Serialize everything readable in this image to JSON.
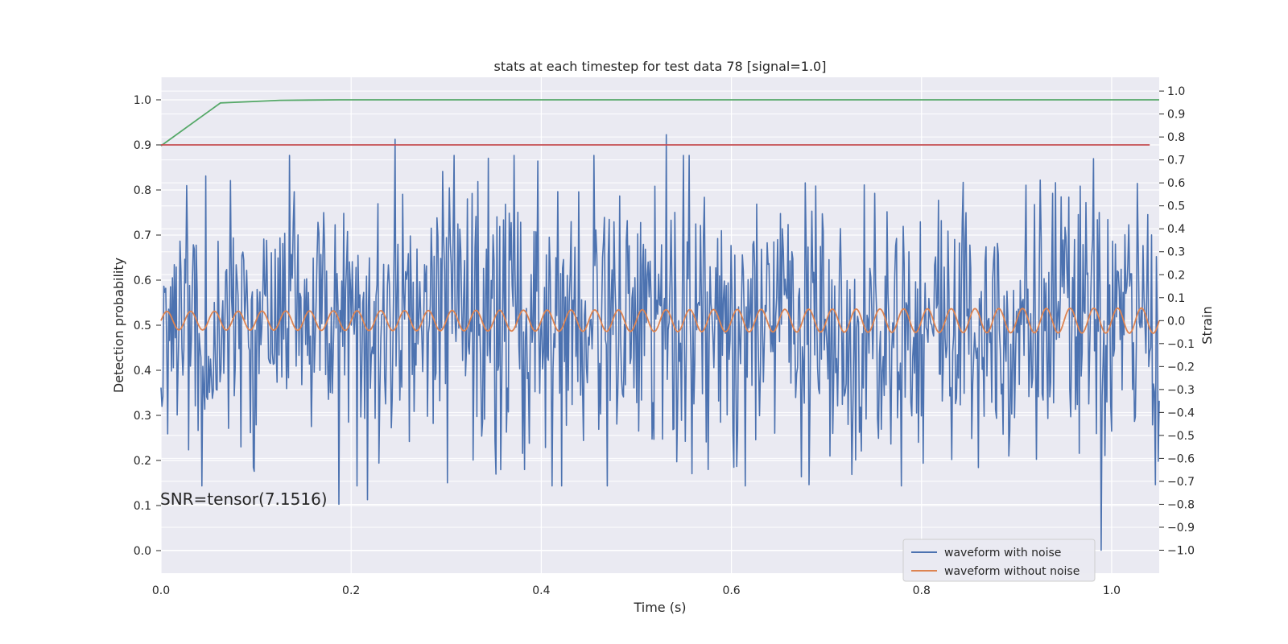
{
  "chart_data": {
    "type": "line",
    "title": "stats at each timestep for test data 78 [signal=1.0]",
    "xlabel": "Time (s)",
    "ylabel_left": "Detection probability",
    "ylabel_right": "Strain",
    "xlim": [
      0.0,
      1.05
    ],
    "ylim_left": [
      -0.05,
      1.05
    ],
    "ylim_right": [
      -1.1,
      1.06
    ],
    "xticks": [
      "0.0",
      "0.2",
      "0.4",
      "0.6",
      "0.8",
      "1.0"
    ],
    "xtick_values": [
      0.0,
      0.2,
      0.4,
      0.6,
      0.8,
      1.0
    ],
    "yticks_left": [
      "0.0",
      "0.1",
      "0.2",
      "0.3",
      "0.4",
      "0.5",
      "0.6",
      "0.7",
      "0.8",
      "0.9",
      "1.0"
    ],
    "yticks_left_values": [
      0.0,
      0.1,
      0.2,
      0.3,
      0.4,
      0.5,
      0.6,
      0.7,
      0.8,
      0.9,
      1.0
    ],
    "yticks_right": [
      "−1.0",
      "−0.9",
      "−0.8",
      "−0.7",
      "−0.6",
      "−0.5",
      "−0.4",
      "−0.3",
      "−0.2",
      "−0.1",
      "0.0",
      "0.1",
      "0.2",
      "0.3",
      "0.4",
      "0.5",
      "0.6",
      "0.7",
      "0.8",
      "0.9",
      "1.0"
    ],
    "yticks_right_values": [
      -1.0,
      -0.9,
      -0.8,
      -0.7,
      -0.6,
      -0.5,
      -0.4,
      -0.3,
      -0.2,
      -0.1,
      0.0,
      0.1,
      0.2,
      0.3,
      0.4,
      0.5,
      0.6,
      0.7,
      0.8,
      0.9,
      1.0
    ],
    "grid": true,
    "legend_position": "bottom-right",
    "annotation": "SNR=tensor(7.1516)",
    "series": [
      {
        "name": "waveform with noise",
        "axis": "right",
        "color": "#4c72b0",
        "x_range": [
          0.0,
          1.05
        ],
        "n_points": 1050,
        "noise_std": 0.3,
        "highlights": [
          {
            "x": 0.187,
            "y": -0.8
          },
          {
            "x": 0.217,
            "y": -0.78
          },
          {
            "x": 0.246,
            "y": 0.79
          },
          {
            "x": 0.532,
            "y": 0.81
          },
          {
            "x": 0.989,
            "y": -1.0
          },
          {
            "x": 0.296,
            "y": 0.65
          },
          {
            "x": 0.047,
            "y": 0.63
          },
          {
            "x": 0.073,
            "y": 0.61
          },
          {
            "x": 0.678,
            "y": 0.6
          },
          {
            "x": 0.91,
            "y": 0.59
          },
          {
            "x": 0.86,
            "y": -0.64
          }
        ]
      },
      {
        "name": "waveform without noise",
        "axis": "right",
        "color": "#dd8452",
        "x_range": [
          0.0,
          1.05
        ],
        "amplitude": 0.04,
        "amplitude_end": 0.055,
        "frequency": 40,
        "offset": 0.0
      },
      {
        "name": "",
        "axis": "left",
        "color": "#55a868",
        "x": [
          0.0,
          0.0625,
          0.125,
          0.1875,
          0.25,
          0.5,
          0.75,
          1.0,
          1.05
        ],
        "y": [
          0.898,
          0.993,
          0.999,
          1.0,
          1.0,
          1.0,
          1.0,
          1.0,
          1.0
        ]
      },
      {
        "name": "",
        "axis": "left",
        "color": "#c44e52",
        "x": [
          0.0,
          1.04
        ],
        "y": [
          0.9,
          0.9
        ]
      }
    ]
  }
}
